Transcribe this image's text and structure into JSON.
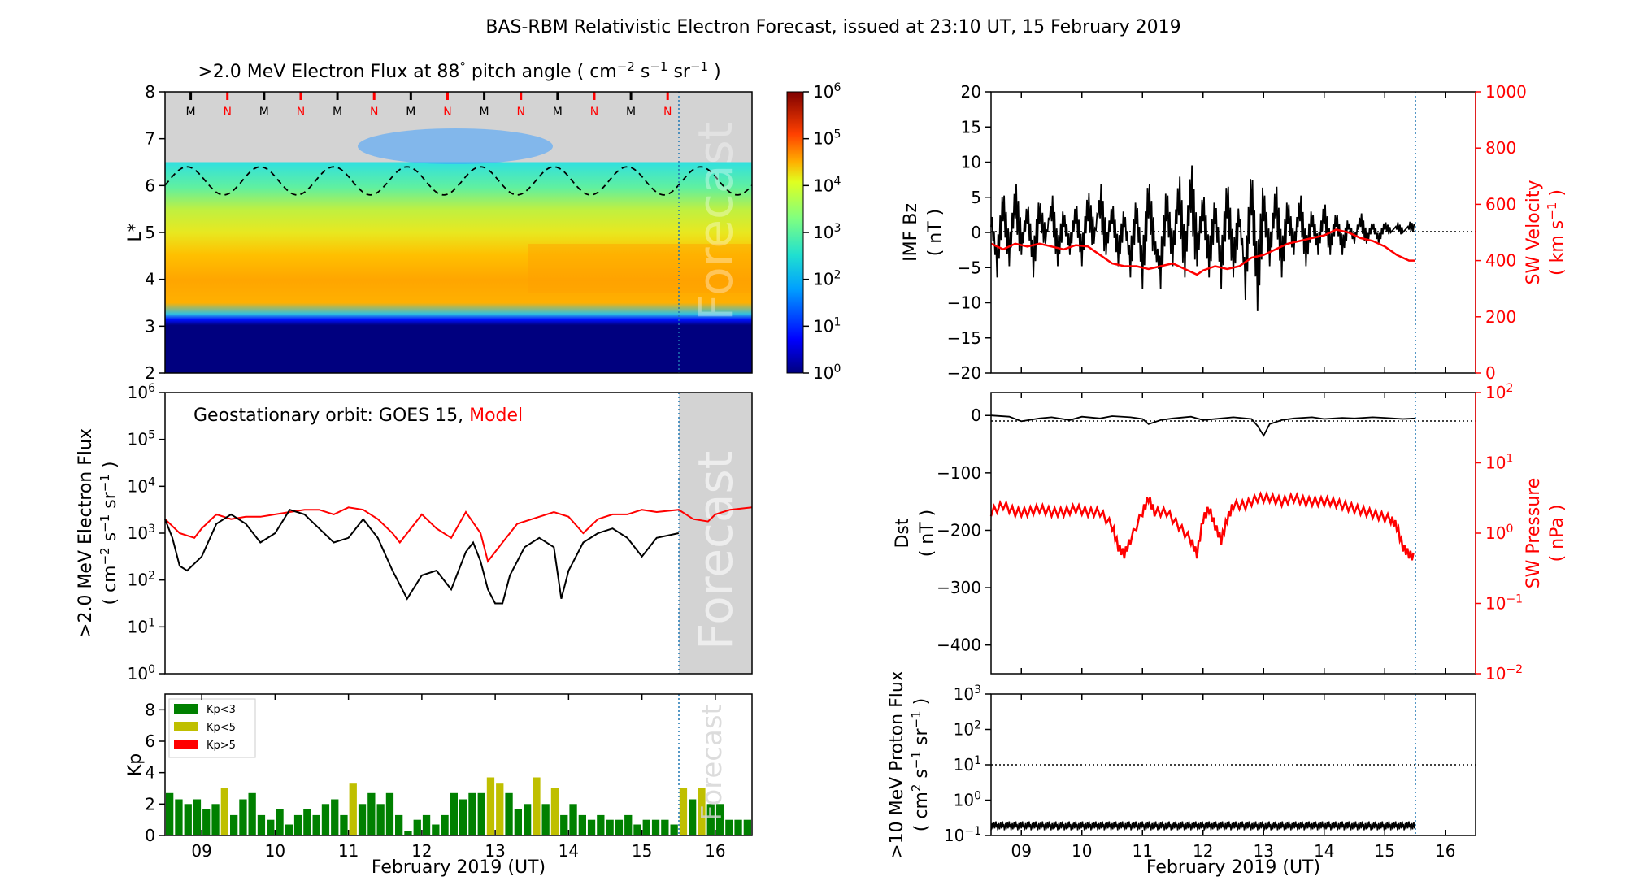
{
  "figure": {
    "title": "BAS-RBM Relativistic Electron Forecast, issued at 23:10 UT, 15 February 2019",
    "xlabel": "February 2019 (UT)",
    "day_ticks": [
      "09",
      "10",
      "11",
      "12",
      "13",
      "14",
      "15",
      "16"
    ]
  },
  "chart_data": [
    {
      "id": "flux_map",
      "type": "heatmap",
      "title_main": ">2.0 MeV Electron Flux at 88",
      "title_deg": "°",
      "title_mid": " pitch angle ( cm",
      "title_exp1": "−2",
      "title_s": " s",
      "title_exp2": "−1",
      "title_sr": " sr",
      "title_exp3": "−1",
      "title_end": " )",
      "ylabel": "L*",
      "yticks": [
        "2",
        "3",
        "4",
        "5",
        "6",
        "7",
        "8"
      ],
      "ylim": [
        2,
        8
      ],
      "colorbar_ticks": [
        "10",
        "10",
        "10",
        "10",
        "10",
        "10",
        "10"
      ],
      "colorbar_exps": [
        "0",
        "1",
        "2",
        "3",
        "4",
        "5",
        "6"
      ],
      "mn_markers": [
        "M",
        "N",
        "M",
        "N",
        "M",
        "N",
        "M",
        "N",
        "M",
        "N",
        "M",
        "N",
        "M",
        "N"
      ],
      "forecast_label": "Forecast",
      "dashed_L_range": [
        5.8,
        6.4
      ]
    },
    {
      "id": "geo_flux",
      "type": "line",
      "label_prefix": "Geostationary orbit:   GOES 15, ",
      "label_model": "Model",
      "ylabel_line1": ">2.0 MeV Electron Flux",
      "ylabel_line2": "( cm",
      "ylabel_exp1": "−2",
      "ylabel_s": " s",
      "ylabel_exp2": "−1",
      "ylabel_sr": " sr",
      "ylabel_exp3": "−1",
      "ylabel_end": " )",
      "yticks_base": [
        "10",
        "10",
        "10",
        "10",
        "10",
        "10",
        "10"
      ],
      "yticks_exp": [
        "0",
        "1",
        "2",
        "3",
        "4",
        "5",
        "6"
      ],
      "ylim_log10": [
        0,
        6
      ],
      "forecast_label": "Forecast",
      "series": [
        {
          "name": "GOES 15",
          "color": "#000000",
          "x": [
            8.5,
            8.6,
            8.7,
            8.8,
            9.0,
            9.2,
            9.4,
            9.6,
            9.8,
            10.0,
            10.2,
            10.4,
            10.6,
            10.8,
            11.0,
            11.2,
            11.4,
            11.6,
            11.7,
            11.8,
            12.0,
            12.2,
            12.4,
            12.6,
            12.7,
            12.8,
            12.9,
            13.0,
            13.1,
            13.2,
            13.4,
            13.6,
            13.8,
            13.9,
            14.0,
            14.2,
            14.4,
            14.6,
            14.8,
            15.0,
            15.2,
            15.5
          ],
          "log10_y": [
            3.3,
            2.9,
            2.3,
            2.2,
            2.5,
            3.2,
            3.4,
            3.2,
            2.8,
            3.0,
            3.5,
            3.4,
            3.1,
            2.8,
            2.9,
            3.3,
            2.9,
            2.2,
            1.9,
            1.6,
            2.1,
            2.2,
            1.8,
            2.6,
            2.8,
            2.4,
            1.8,
            1.5,
            1.5,
            2.1,
            2.7,
            2.9,
            2.7,
            1.6,
            2.2,
            2.8,
            3.0,
            3.1,
            2.9,
            2.5,
            2.9,
            3.0
          ]
        },
        {
          "name": "Model",
          "color": "#ff0000",
          "x": [
            8.5,
            8.7,
            8.9,
            9.0,
            9.2,
            9.4,
            9.6,
            9.8,
            10.0,
            10.2,
            10.4,
            10.6,
            10.8,
            11.0,
            11.2,
            11.4,
            11.6,
            11.7,
            11.9,
            12.0,
            12.2,
            12.4,
            12.6,
            12.8,
            12.9,
            13.1,
            13.3,
            13.5,
            13.7,
            13.8,
            14.0,
            14.2,
            14.4,
            14.6,
            14.8,
            15.0,
            15.2,
            15.5,
            15.7,
            15.9,
            16.0,
            16.2,
            16.5
          ],
          "log10_y": [
            3.3,
            3.0,
            2.9,
            3.1,
            3.4,
            3.3,
            3.35,
            3.35,
            3.4,
            3.45,
            3.5,
            3.5,
            3.4,
            3.55,
            3.5,
            3.3,
            3.0,
            2.8,
            3.2,
            3.4,
            3.1,
            2.9,
            3.45,
            3.0,
            2.4,
            2.8,
            3.2,
            3.3,
            3.4,
            3.45,
            3.35,
            3.0,
            3.3,
            3.4,
            3.4,
            3.5,
            3.45,
            3.5,
            3.3,
            3.25,
            3.4,
            3.5,
            3.55
          ]
        }
      ]
    },
    {
      "id": "kp",
      "type": "bar",
      "ylabel": "Kp",
      "yticks": [
        "0",
        "2",
        "4",
        "6",
        "8"
      ],
      "ylim": [
        0,
        9
      ],
      "forecast_label": "Forecast",
      "legend": [
        {
          "label": "Kp<3",
          "color": "#008000"
        },
        {
          "label": "Kp<5",
          "color": "#bfbf00"
        },
        {
          "label": "Kp>5",
          "color": "#ff0000"
        }
      ],
      "values": [
        2.7,
        2.3,
        2.0,
        2.3,
        1.7,
        2.0,
        3.0,
        1.3,
        2.3,
        2.7,
        1.3,
        1.0,
        1.7,
        0.7,
        1.3,
        1.7,
        1.3,
        2.0,
        2.3,
        1.3,
        3.3,
        2.0,
        2.7,
        2.0,
        2.7,
        1.3,
        0.3,
        1.0,
        1.3,
        0.7,
        1.3,
        2.7,
        2.3,
        2.7,
        2.7,
        3.7,
        3.3,
        2.7,
        1.7,
        2.0,
        3.7,
        2.0,
        3.0,
        1.3,
        2.0,
        1.3,
        1.0,
        1.3,
        1.0,
        1.0,
        1.3,
        0.7,
        1.0,
        1.0,
        1.0,
        0.7,
        3.0,
        2.3,
        3.0,
        2.0,
        2.0,
        1.0,
        1.0,
        1.0
      ]
    },
    {
      "id": "imf_sw",
      "type": "line",
      "ylabel_left_1": "IMF Bz",
      "ylabel_left_2": "( nT )",
      "ylabel_right_1": "SW Velocity",
      "ylabel_right_2": "( km s",
      "ylabel_right_exp": "−1",
      "ylabel_right_end": " )",
      "yticks_left": [
        "20",
        "15",
        "10",
        "5",
        "0",
        "−5",
        "−10",
        "−15",
        "−20"
      ],
      "yticks_right": [
        "1000",
        "800",
        "600",
        "400",
        "200",
        "0"
      ],
      "ylim_left": [
        -20,
        20
      ],
      "ylim_right": [
        0,
        1000
      ],
      "series": [
        {
          "name": "IMF Bz",
          "color": "#000000",
          "x": [
            8.5,
            8.6,
            8.7,
            8.8,
            8.9,
            9.0,
            9.1,
            9.2,
            9.3,
            9.4,
            9.5,
            9.6,
            9.7,
            9.8,
            9.9,
            10.0,
            10.1,
            10.2,
            10.3,
            10.4,
            10.5,
            10.6,
            10.7,
            10.8,
            10.9,
            11.0,
            11.1,
            11.2,
            11.3,
            11.4,
            11.5,
            11.6,
            11.7,
            11.8,
            11.9,
            12.0,
            12.1,
            12.2,
            12.3,
            12.4,
            12.5,
            12.6,
            12.7,
            12.8,
            12.9,
            13.0,
            13.1,
            13.2,
            13.3,
            13.4,
            13.5,
            13.6,
            13.7,
            13.8,
            13.9,
            14.0,
            14.1,
            14.2,
            14.3,
            14.4,
            14.5,
            14.6,
            14.7,
            14.8,
            14.9,
            15.0,
            15.1,
            15.2,
            15.3,
            15.4,
            15.5
          ],
          "y": [
            2,
            -4,
            4,
            -3,
            5,
            -2,
            3,
            -4,
            3,
            -1,
            4,
            -3,
            2,
            -2,
            3,
            -3,
            4,
            -1,
            5,
            -2,
            3,
            -3,
            2,
            -4,
            3,
            -5,
            5,
            -2,
            -5,
            4,
            -3,
            6,
            -4,
            7,
            -3,
            4,
            -4,
            3,
            -5,
            5,
            -4,
            2,
            -6,
            6,
            -7,
            4,
            -3,
            5,
            -4,
            3,
            -2,
            4,
            -3,
            2,
            -2,
            3,
            -2,
            2,
            -2,
            1,
            -1,
            2,
            -1,
            1,
            -1,
            1,
            0,
            1,
            0,
            1,
            0.5
          ]
        },
        {
          "name": "SW Velocity",
          "color": "#ff0000",
          "x": [
            8.5,
            8.7,
            8.9,
            9.1,
            9.3,
            9.5,
            9.7,
            9.9,
            10.1,
            10.3,
            10.5,
            10.7,
            10.9,
            11.1,
            11.3,
            11.5,
            11.7,
            11.9,
            12.0,
            12.2,
            12.4,
            12.6,
            12.8,
            13.0,
            13.2,
            13.4,
            13.6,
            13.8,
            14.0,
            14.2,
            14.4,
            14.6,
            14.8,
            15.0,
            15.2,
            15.4,
            15.5
          ],
          "y": [
            460,
            440,
            460,
            450,
            460,
            450,
            440,
            455,
            450,
            420,
            390,
            380,
            380,
            370,
            380,
            390,
            370,
            350,
            365,
            380,
            370,
            380,
            410,
            420,
            440,
            460,
            470,
            480,
            490,
            510,
            500,
            480,
            470,
            450,
            420,
            400,
            400
          ]
        }
      ]
    },
    {
      "id": "dst_pressure",
      "type": "line",
      "ylabel_left_1": "Dst",
      "ylabel_left_2": "( nT )",
      "ylabel_right_1": "SW Pressure",
      "ylabel_right_2": "( nPa )",
      "yticks_left": [
        "0",
        "−100",
        "−200",
        "−300",
        "−400"
      ],
      "yticks_right_base": [
        "10",
        "10",
        "10",
        "10",
        "10"
      ],
      "yticks_right_exp": [
        "2",
        "1",
        "0",
        "−1",
        "−2"
      ],
      "ylim_left": [
        -450,
        40
      ],
      "ylim_right_log10": [
        -2,
        2
      ],
      "series": [
        {
          "name": "Dst",
          "color": "#000000",
          "x": [
            8.5,
            8.8,
            9.0,
            9.3,
            9.5,
            9.8,
            10.0,
            10.3,
            10.5,
            10.8,
            11.0,
            11.1,
            11.3,
            11.5,
            11.8,
            12.0,
            12.3,
            12.5,
            12.8,
            12.9,
            13.0,
            13.1,
            13.3,
            13.5,
            13.8,
            14.0,
            14.3,
            14.5,
            14.8,
            15.0,
            15.3,
            15.5
          ],
          "y": [
            0,
            -2,
            -10,
            -5,
            -3,
            -8,
            -2,
            -5,
            -1,
            -3,
            -6,
            -15,
            -8,
            -5,
            -2,
            -8,
            -5,
            -3,
            -6,
            -18,
            -35,
            -15,
            -8,
            -5,
            -3,
            -6,
            -4,
            -5,
            -3,
            -4,
            -6,
            -5
          ]
        },
        {
          "name": "SW Pressure",
          "color": "#ff0000",
          "x": [
            8.5,
            8.7,
            8.9,
            9.1,
            9.3,
            9.5,
            9.7,
            9.9,
            10.1,
            10.3,
            10.5,
            10.6,
            10.7,
            10.8,
            11.0,
            11.1,
            11.2,
            11.4,
            11.6,
            11.8,
            11.9,
            12.0,
            12.1,
            12.2,
            12.3,
            12.4,
            12.5,
            12.7,
            12.9,
            13.1,
            13.3,
            13.5,
            13.7,
            13.9,
            14.1,
            14.3,
            14.5,
            14.7,
            14.9,
            15.1,
            15.2,
            15.3,
            15.4,
            15.5
          ],
          "log10_y": [
            0.3,
            0.4,
            0.3,
            0.3,
            0.35,
            0.3,
            0.3,
            0.35,
            0.3,
            0.3,
            0.1,
            -0.2,
            -0.3,
            -0.1,
            0.3,
            0.5,
            0.3,
            0.3,
            0.1,
            -0.1,
            -0.3,
            0.2,
            0.35,
            0.1,
            -0.1,
            0.2,
            0.4,
            0.4,
            0.5,
            0.5,
            0.45,
            0.5,
            0.45,
            0.45,
            0.45,
            0.4,
            0.35,
            0.3,
            0.25,
            0.2,
            0.1,
            -0.2,
            -0.3,
            -0.35
          ]
        }
      ]
    },
    {
      "id": "proton_flux",
      "type": "line",
      "ylabel_1": ">10 MeV Proton Flux",
      "ylabel_2": "( cm",
      "ylabel_exp1": "2",
      "ylabel_s": " s",
      "ylabel_exp2": "−1",
      "ylabel_sr": " sr",
      "ylabel_exp3": "−1",
      "ylabel_end": " )",
      "yticks_base": [
        "10",
        "10",
        "10",
        "10",
        "10"
      ],
      "yticks_exp": [
        "3",
        "2",
        "1",
        "0",
        "−1"
      ],
      "ylim_log10": [
        -1,
        3
      ],
      "threshold_log10": 1,
      "series": [
        {
          "name": "Proton",
          "color": "#000000",
          "x_range": [
            8.5,
            15.5
          ],
          "log10_range": [
            -0.85,
            -0.6
          ]
        }
      ]
    }
  ]
}
